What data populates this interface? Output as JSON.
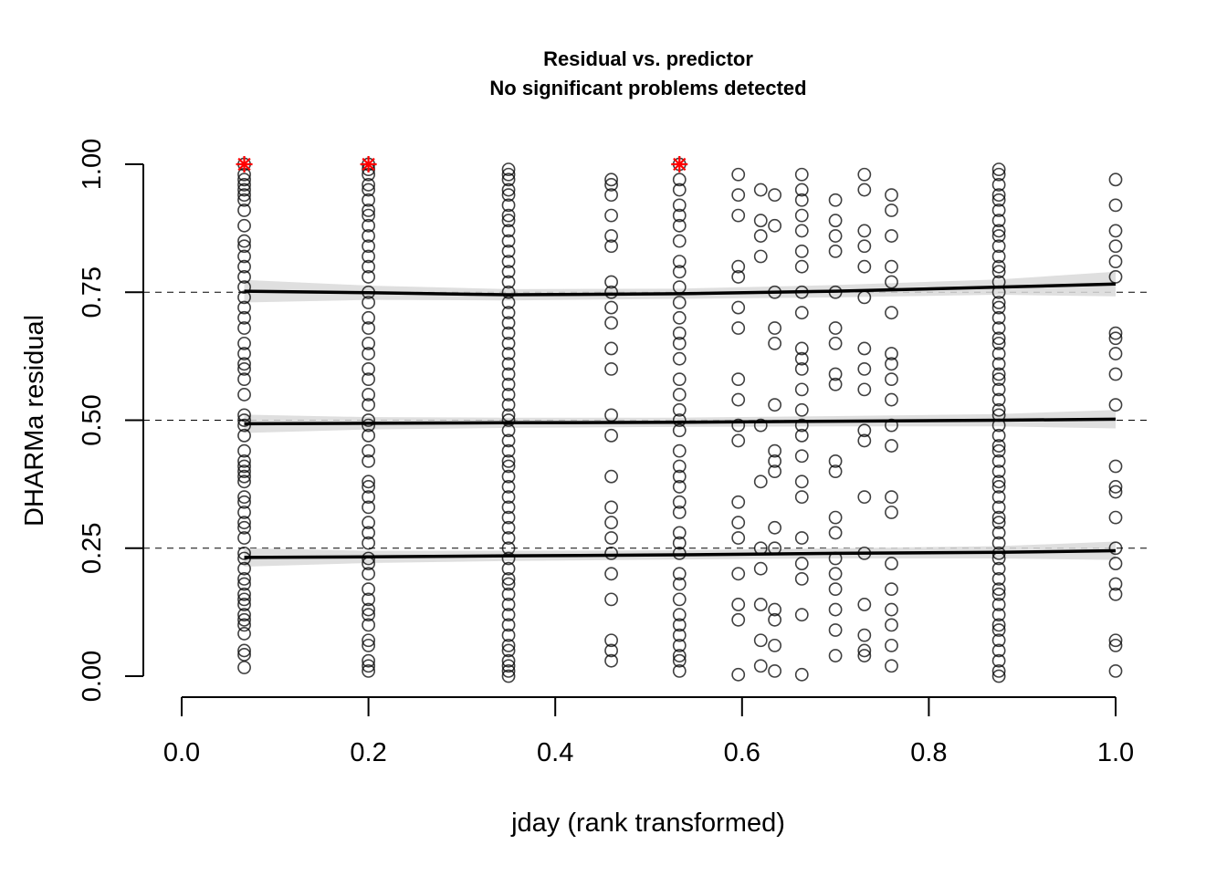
{
  "chart_data": {
    "type": "scatter",
    "title": "Residual vs. predictor",
    "subtitle": "No significant problems detected",
    "xlabel": "jday (rank transformed)",
    "ylabel": "DHARMa residual",
    "xlim": [
      0,
      1
    ],
    "ylim": [
      0,
      1
    ],
    "x_ticks": [
      "0.0",
      "0.2",
      "0.4",
      "0.6",
      "0.8",
      "1.0"
    ],
    "y_ticks": [
      "0.00",
      "0.25",
      "0.50",
      "0.75",
      "1.00"
    ],
    "reference_lines": [
      0.25,
      0.5,
      0.75
    ],
    "quantile_fits": [
      {
        "quantile": 0.25,
        "x": [
          0.067,
          0.2,
          0.35,
          0.533,
          0.7,
          0.875,
          1.0
        ],
        "y": [
          0.232,
          0.233,
          0.235,
          0.237,
          0.24,
          0.242,
          0.245
        ],
        "band": [
          0.018,
          0.012,
          0.01,
          0.009,
          0.01,
          0.012,
          0.018
        ]
      },
      {
        "quantile": 0.5,
        "x": [
          0.067,
          0.2,
          0.35,
          0.533,
          0.7,
          0.875,
          1.0
        ],
        "y": [
          0.493,
          0.494,
          0.495,
          0.496,
          0.498,
          0.5,
          0.502
        ],
        "band": [
          0.018,
          0.012,
          0.01,
          0.009,
          0.01,
          0.012,
          0.018
        ]
      },
      {
        "quantile": 0.75,
        "x": [
          0.067,
          0.2,
          0.35,
          0.533,
          0.7,
          0.875,
          1.0
        ],
        "y": [
          0.752,
          0.749,
          0.745,
          0.747,
          0.752,
          0.76,
          0.766
        ],
        "band": [
          0.022,
          0.014,
          0.011,
          0.01,
          0.012,
          0.015,
          0.024
        ]
      }
    ],
    "point_groups": [
      {
        "x": 0.067,
        "y": [
          0.017,
          0.042,
          0.05,
          0.083,
          0.1,
          0.11,
          0.12,
          0.14,
          0.15,
          0.16,
          0.18,
          0.19,
          0.21,
          0.23,
          0.24,
          0.27,
          0.29,
          0.3,
          0.32,
          0.34,
          0.35,
          0.38,
          0.39,
          0.4,
          0.41,
          0.42,
          0.44,
          0.47,
          0.49,
          0.5,
          0.51,
          0.55,
          0.58,
          0.6,
          0.61,
          0.63,
          0.65,
          0.68,
          0.7,
          0.72,
          0.74,
          0.76,
          0.78,
          0.8,
          0.82,
          0.84,
          0.85,
          0.88,
          0.91,
          0.93,
          0.94,
          0.95,
          0.96,
          0.97,
          0.98
        ]
      },
      {
        "x": 0.2,
        "y": [
          0.01,
          0.02,
          0.03,
          0.06,
          0.07,
          0.1,
          0.12,
          0.13,
          0.15,
          0.17,
          0.2,
          0.22,
          0.23,
          0.26,
          0.28,
          0.3,
          0.33,
          0.35,
          0.37,
          0.38,
          0.42,
          0.44,
          0.47,
          0.49,
          0.5,
          0.53,
          0.55,
          0.58,
          0.6,
          0.63,
          0.65,
          0.68,
          0.7,
          0.73,
          0.75,
          0.78,
          0.8,
          0.82,
          0.84,
          0.86,
          0.88,
          0.9,
          0.91,
          0.93,
          0.95,
          0.96,
          0.98,
          0.99
        ]
      },
      {
        "x": 0.35,
        "y": [
          0.0,
          0.01,
          0.02,
          0.03,
          0.05,
          0.06,
          0.08,
          0.1,
          0.12,
          0.14,
          0.16,
          0.18,
          0.19,
          0.21,
          0.23,
          0.25,
          0.27,
          0.29,
          0.31,
          0.33,
          0.35,
          0.37,
          0.39,
          0.41,
          0.42,
          0.44,
          0.46,
          0.48,
          0.5,
          0.51,
          0.53,
          0.55,
          0.57,
          0.59,
          0.61,
          0.63,
          0.65,
          0.67,
          0.69,
          0.71,
          0.73,
          0.75,
          0.77,
          0.79,
          0.81,
          0.83,
          0.85,
          0.87,
          0.89,
          0.9,
          0.92,
          0.94,
          0.95,
          0.97,
          0.98,
          0.99
        ]
      },
      {
        "x": 0.46,
        "y": [
          0.03,
          0.05,
          0.07,
          0.15,
          0.2,
          0.24,
          0.27,
          0.3,
          0.33,
          0.39,
          0.47,
          0.51,
          0.6,
          0.64,
          0.69,
          0.72,
          0.75,
          0.77,
          0.84,
          0.86,
          0.9,
          0.94,
          0.96,
          0.97
        ]
      },
      {
        "x": 0.533,
        "y": [
          0.01,
          0.03,
          0.04,
          0.06,
          0.08,
          0.1,
          0.12,
          0.15,
          0.18,
          0.2,
          0.24,
          0.26,
          0.28,
          0.32,
          0.34,
          0.37,
          0.39,
          0.41,
          0.44,
          0.48,
          0.5,
          0.52,
          0.55,
          0.58,
          0.62,
          0.65,
          0.67,
          0.7,
          0.73,
          0.76,
          0.79,
          0.81,
          0.85,
          0.88,
          0.9,
          0.92,
          0.95,
          0.97
        ]
      },
      {
        "x": 0.596,
        "y": [
          0.003,
          0.11,
          0.14,
          0.2,
          0.27,
          0.3,
          0.34,
          0.46,
          0.49,
          0.54,
          0.58,
          0.68,
          0.72,
          0.78,
          0.8,
          0.9,
          0.94,
          0.98
        ]
      },
      {
        "x": 0.62,
        "y": [
          0.02,
          0.07,
          0.14,
          0.21,
          0.25,
          0.38,
          0.49,
          0.82,
          0.86,
          0.89,
          0.95
        ]
      },
      {
        "x": 0.635,
        "y": [
          0.01,
          0.06,
          0.11,
          0.13,
          0.25,
          0.29,
          0.4,
          0.42,
          0.44,
          0.53,
          0.65,
          0.68,
          0.75,
          0.88,
          0.94
        ]
      },
      {
        "x": 0.664,
        "y": [
          0.003,
          0.12,
          0.19,
          0.22,
          0.27,
          0.35,
          0.38,
          0.43,
          0.47,
          0.49,
          0.52,
          0.56,
          0.6,
          0.62,
          0.64,
          0.71,
          0.75,
          0.8,
          0.83,
          0.87,
          0.9,
          0.93,
          0.95,
          0.98
        ]
      },
      {
        "x": 0.7,
        "y": [
          0.04,
          0.09,
          0.13,
          0.17,
          0.2,
          0.23,
          0.28,
          0.31,
          0.4,
          0.42,
          0.57,
          0.59,
          0.65,
          0.68,
          0.75,
          0.83,
          0.86,
          0.89,
          0.93
        ]
      },
      {
        "x": 0.731,
        "y": [
          0.04,
          0.05,
          0.08,
          0.14,
          0.24,
          0.35,
          0.46,
          0.48,
          0.56,
          0.6,
          0.64,
          0.74,
          0.8,
          0.84,
          0.87,
          0.95,
          0.98
        ]
      },
      {
        "x": 0.76,
        "y": [
          0.02,
          0.06,
          0.1,
          0.13,
          0.17,
          0.22,
          0.32,
          0.35,
          0.45,
          0.49,
          0.54,
          0.58,
          0.61,
          0.63,
          0.71,
          0.77,
          0.8,
          0.86,
          0.91,
          0.94
        ]
      },
      {
        "x": 0.875,
        "y": [
          0.0,
          0.01,
          0.03,
          0.05,
          0.07,
          0.09,
          0.1,
          0.12,
          0.14,
          0.16,
          0.17,
          0.19,
          0.21,
          0.23,
          0.24,
          0.26,
          0.28,
          0.3,
          0.31,
          0.33,
          0.35,
          0.37,
          0.38,
          0.4,
          0.42,
          0.44,
          0.45,
          0.47,
          0.49,
          0.51,
          0.52,
          0.54,
          0.56,
          0.58,
          0.59,
          0.61,
          0.63,
          0.65,
          0.66,
          0.68,
          0.7,
          0.72,
          0.73,
          0.75,
          0.77,
          0.79,
          0.8,
          0.82,
          0.84,
          0.86,
          0.87,
          0.89,
          0.91,
          0.93,
          0.94,
          0.96,
          0.98,
          0.99
        ]
      },
      {
        "x": 1.0,
        "y": [
          0.01,
          0.06,
          0.07,
          0.16,
          0.18,
          0.22,
          0.25,
          0.31,
          0.36,
          0.37,
          0.41,
          0.53,
          0.59,
          0.63,
          0.66,
          0.67,
          0.78,
          0.81,
          0.84,
          0.87,
          0.92,
          0.97
        ]
      }
    ],
    "outliers": [
      {
        "x": 0.067,
        "y": 1.0
      },
      {
        "x": 0.2,
        "y": 1.0
      },
      {
        "x": 0.533,
        "y": 1.0
      }
    ],
    "colors": {
      "points": "#000000",
      "outlier": "#ff0000",
      "band": "#d9d9d9",
      "fit": "#000000"
    }
  }
}
